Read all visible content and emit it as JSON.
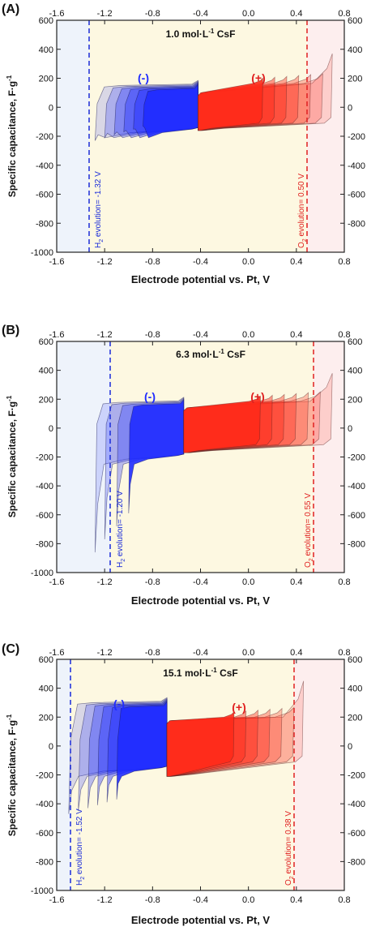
{
  "colors": {
    "background_window": "#fdf8e1",
    "background_h2_region": "#eef3fb",
    "background_o2_region": "#fdeeee",
    "negative_electrode": "#1f2bff",
    "positive_electrode": "#ff2a1a",
    "h2_line": "#1a2bd9",
    "o2_line": "#e02020",
    "axes": "#222222"
  },
  "shared": {
    "xlabel": "Electrode potential vs. Pt, V",
    "ylabel_main": "Specific capacitance, F·g",
    "ylabel_sup": "-1",
    "xlim": [
      -1.6,
      0.8
    ],
    "ylim": [
      -1000,
      600
    ],
    "xticks": [
      "-1.6",
      "-1.2",
      "-0.8",
      "-0.4",
      "0.0",
      "0.4",
      "0.8"
    ],
    "yticks": [
      "600",
      "400",
      "200",
      "0",
      "-200",
      "-400",
      "-600",
      "-800",
      "-1000"
    ],
    "neg_label": "(-)",
    "pos_label": "(+)"
  },
  "chart_data": [
    {
      "type": "line",
      "panel": "(A)",
      "title_main": "1.0 mol·L",
      "title_sup": "-1",
      "title_end": " CsF",
      "xlim": [
        -1.6,
        0.8
      ],
      "ylim": [
        -1000,
        600
      ],
      "h2": {
        "potential": -1.32,
        "label": "evolution= -1.32 V"
      },
      "o2": {
        "potential": 0.5,
        "label": "evolution= 0.50 V"
      },
      "negative_cvs": {
        "x_right": -0.42,
        "lower_limits": [
          -1.28,
          -1.2,
          -1.12,
          -1.04,
          -0.96,
          -0.88
        ],
        "upper_y": 130,
        "lower_y": -150,
        "tail_y": -230
      },
      "positive_cvs": {
        "x_left": -0.42,
        "upper_limits": [
          0.12,
          0.22,
          0.32,
          0.42,
          0.52,
          0.62,
          0.7
        ],
        "upper_y_left": 100,
        "upper_y_right": 165,
        "lower_y_left": -160,
        "lower_y_right": -110,
        "peak_y": 370
      }
    },
    {
      "type": "line",
      "panel": "(B)",
      "title_main": "6.3 mol·L",
      "title_sup": "-1",
      "title_end": " CsF",
      "xlim": [
        -1.6,
        0.8
      ],
      "ylim": [
        -1000,
        600
      ],
      "h2": {
        "potential": -1.2,
        "label": "evolution= -1.20 V"
      },
      "o2": {
        "potential": 0.55,
        "label": "evolution= 0.55 V"
      },
      "negative_cvs": {
        "x_right": -0.54,
        "lower_limits": [
          -1.28,
          -1.2,
          -1.1,
          -1.0
        ],
        "upper_y": 170,
        "lower_y": -190,
        "tail_y": -860
      },
      "positive_cvs": {
        "x_left": -0.54,
        "upper_limits": [
          0.1,
          0.2,
          0.3,
          0.4,
          0.5,
          0.6,
          0.7
        ],
        "upper_y_left": 140,
        "upper_y_right": 185,
        "lower_y_left": -170,
        "lower_y_right": -115,
        "peak_y": 380
      }
    },
    {
      "type": "line",
      "panel": "(C)",
      "title_main": "15.1 mol·L",
      "title_sup": "-1",
      "title_end": " CsF",
      "xlim": [
        -1.6,
        0.8
      ],
      "ylim": [
        -1000,
        600
      ],
      "h2": {
        "potential": -1.52,
        "label": "evolution= -1.52 V"
      },
      "o2": {
        "potential": 0.38,
        "label": "evolution= 0.38 V"
      },
      "negative_cvs": {
        "x_right": -0.68,
        "lower_limits": [
          -1.5,
          -1.42,
          -1.34,
          -1.26,
          -1.18,
          -1.1
        ],
        "upper_y": 280,
        "lower_y": -150,
        "tail_y": -470
      },
      "positive_cvs": {
        "x_left": -0.68,
        "upper_limits": [
          -0.12,
          -0.02,
          0.08,
          0.18,
          0.28,
          0.38,
          0.46
        ],
        "upper_y_left": 175,
        "upper_y_right": 200,
        "lower_y_left": -210,
        "lower_y_right": -110,
        "peak_y": 450
      }
    }
  ]
}
